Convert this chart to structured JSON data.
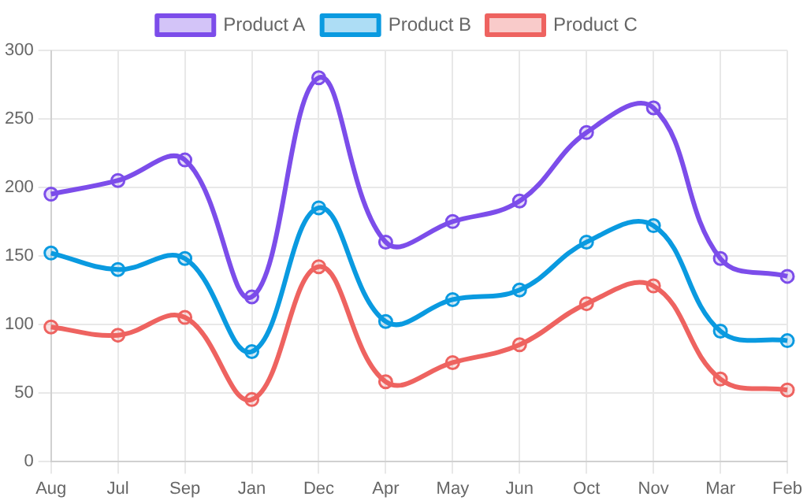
{
  "chart_data": {
    "type": "line",
    "categories": [
      "Aug",
      "Jul",
      "Sep",
      "Jan",
      "Dec",
      "Apr",
      "May",
      "Jun",
      "Oct",
      "Nov",
      "Mar",
      "Feb"
    ],
    "series": [
      {
        "name": "Product A",
        "color": "#7c4dea",
        "values": [
          195,
          205,
          220,
          120,
          280,
          160,
          175,
          190,
          240,
          258,
          148,
          135
        ]
      },
      {
        "name": "Product B",
        "color": "#0a9ae0",
        "values": [
          152,
          140,
          148,
          80,
          185,
          102,
          118,
          125,
          160,
          172,
          95,
          88
        ]
      },
      {
        "name": "Product C",
        "color": "#ee6360",
        "values": [
          98,
          92,
          105,
          45,
          142,
          58,
          72,
          85,
          115,
          128,
          60,
          52
        ]
      }
    ],
    "ylim": [
      0,
      300
    ],
    "yticks": [
      0,
      50,
      100,
      150,
      200,
      250,
      300
    ],
    "grid": true,
    "legend": "top",
    "marker": "circle",
    "line_style": "solid"
  }
}
